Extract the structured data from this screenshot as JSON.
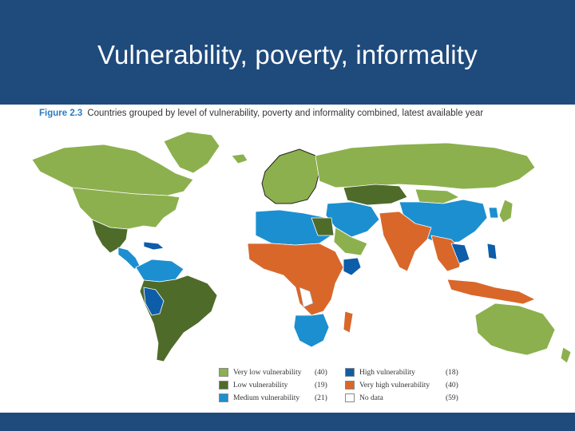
{
  "header": {
    "title": "Vulnerability, poverty, informality"
  },
  "figure": {
    "number": "Figure 2.3",
    "caption": "Countries grouped by level of vulnerability, poverty and informality combined, latest available year"
  },
  "colors": {
    "header_bg": "#1f4a7c",
    "very_low": "#8cb04e",
    "low": "#4e6b2a",
    "medium": "#1c8fd0",
    "high": "#0d5da8",
    "very_high": "#d9672a",
    "no_data": "#ffffff"
  },
  "legend": {
    "items": [
      {
        "label": "Very low vulnerability",
        "count": "(40)",
        "color": "#8cb04e"
      },
      {
        "label": "Low vulnerability",
        "count": "(19)",
        "color": "#4e6b2a"
      },
      {
        "label": "Medium vulnerability",
        "count": "(21)",
        "color": "#1c8fd0"
      },
      {
        "label": "High vulnerability",
        "count": "(18)",
        "color": "#0d5da8"
      },
      {
        "label": "Very high vulnerability",
        "count": "(40)",
        "color": "#d9672a"
      },
      {
        "label": "No data",
        "count": "(59)",
        "color": "#ffffff"
      }
    ]
  }
}
